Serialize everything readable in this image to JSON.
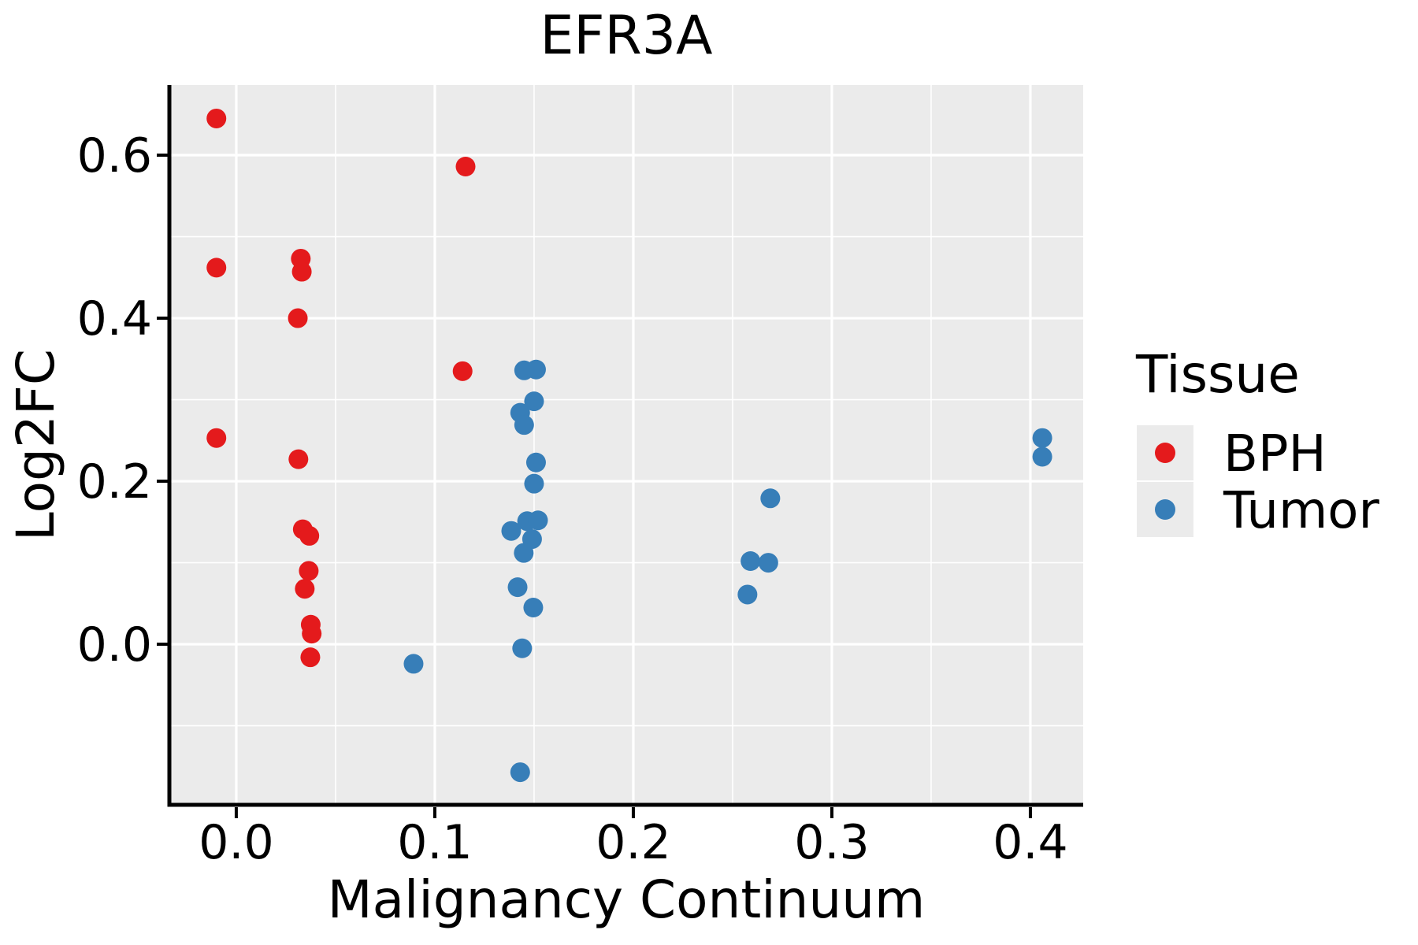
{
  "chart_data": {
    "type": "scatter",
    "title": "EFR3A",
    "xlabel": "Malignancy Continuum",
    "ylabel": "Log2FC",
    "xlim": [
      -0.0337,
      0.4266
    ],
    "ylim": [
      -0.197,
      0.686
    ],
    "grid": true,
    "panel_bg": "#ebebeb",
    "grid_color": "#ffffff",
    "axis_color": "#000000",
    "point_radius": 12.5,
    "x_major_ticks": [
      {
        "value": 0.0,
        "label": "0.0"
      },
      {
        "value": 0.1,
        "label": "0.1"
      },
      {
        "value": 0.2,
        "label": "0.2"
      },
      {
        "value": 0.3,
        "label": "0.3"
      },
      {
        "value": 0.4,
        "label": "0.4"
      }
    ],
    "x_minor_ticks": [
      0.05,
      0.15,
      0.25,
      0.35
    ],
    "y_major_ticks": [
      {
        "value": 0.0,
        "label": "0.0"
      },
      {
        "value": 0.2,
        "label": "0.2"
      },
      {
        "value": 0.4,
        "label": "0.4"
      },
      {
        "value": 0.6,
        "label": "0.6"
      }
    ],
    "y_minor_ticks": [
      -0.1,
      0.1,
      0.3,
      0.5
    ],
    "legend": {
      "title": "Tissue",
      "position": "right",
      "entries": [
        {
          "label": "BPH",
          "color": "#e41a1c"
        },
        {
          "label": "Tumor",
          "color": "#377eb8"
        }
      ]
    },
    "series": [
      {
        "name": "BPH",
        "color": "#e41a1c",
        "points": [
          [
            -0.01,
            0.645
          ],
          [
            -0.01,
            0.462
          ],
          [
            -0.01,
            0.253
          ],
          [
            0.0325,
            0.473
          ],
          [
            0.033,
            0.457
          ],
          [
            0.031,
            0.4
          ],
          [
            0.0313,
            0.227
          ],
          [
            0.0335,
            0.141
          ],
          [
            0.0368,
            0.133
          ],
          [
            0.0365,
            0.09
          ],
          [
            0.0345,
            0.068
          ],
          [
            0.0375,
            0.024
          ],
          [
            0.038,
            0.013
          ],
          [
            0.0373,
            -0.016
          ],
          [
            0.1155,
            0.586
          ],
          [
            0.114,
            0.335
          ]
        ]
      },
      {
        "name": "Tumor",
        "color": "#377eb8",
        "points": [
          [
            0.145,
            0.336
          ],
          [
            0.151,
            0.337
          ],
          [
            0.15,
            0.298
          ],
          [
            0.143,
            0.284
          ],
          [
            0.145,
            0.269
          ],
          [
            0.151,
            0.223
          ],
          [
            0.15,
            0.197
          ],
          [
            0.1465,
            0.151
          ],
          [
            0.152,
            0.152
          ],
          [
            0.1385,
            0.139
          ],
          [
            0.149,
            0.129
          ],
          [
            0.1448,
            0.112
          ],
          [
            0.1417,
            0.07
          ],
          [
            0.1496,
            0.045
          ],
          [
            0.144,
            -0.005
          ],
          [
            0.0893,
            -0.024
          ],
          [
            0.143,
            -0.157
          ],
          [
            0.269,
            0.179
          ],
          [
            0.259,
            0.102
          ],
          [
            0.268,
            0.1
          ],
          [
            0.2575,
            0.061
          ],
          [
            0.406,
            0.253
          ],
          [
            0.406,
            0.23
          ]
        ]
      }
    ]
  }
}
